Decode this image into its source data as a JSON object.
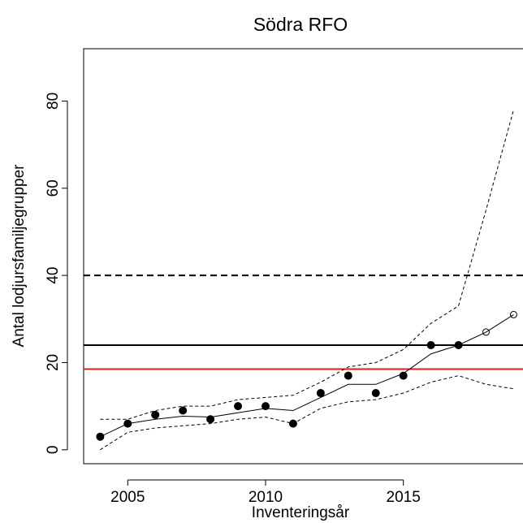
{
  "chart_data": {
    "type": "line",
    "title": "Södra RFO",
    "x_label": "Inventeringsår",
    "y_label": "Antal lodjursfamiljegrupper",
    "x": [
      2004,
      2005,
      2006,
      2007,
      2008,
      2009,
      2010,
      2011,
      2012,
      2013,
      2014,
      2015,
      2016,
      2017,
      2018,
      2019
    ],
    "series": [
      {
        "marker": "filled",
        "color": "#000000",
        "values": [
          3,
          6,
          8,
          9,
          7,
          10,
          10,
          6,
          13,
          17,
          13,
          17,
          24,
          24,
          null,
          null
        ]
      },
      {
        "marker": "open",
        "color": "#000000",
        "values": [
          null,
          null,
          null,
          null,
          null,
          null,
          null,
          null,
          null,
          null,
          null,
          null,
          null,
          null,
          27,
          31
        ]
      },
      {
        "line": "solid",
        "color": "#000000",
        "values": [
          3,
          6,
          7,
          7.7,
          7.5,
          8.5,
          9.5,
          9,
          12,
          15,
          15,
          17.5,
          22,
          24,
          27,
          31
        ]
      },
      {
        "line": "dashed",
        "color": "#000000",
        "values": [
          7,
          7,
          9,
          10,
          10,
          11.5,
          12,
          12.5,
          15.5,
          19,
          20,
          23,
          29,
          33,
          55,
          78
        ]
      },
      {
        "line": "dashed",
        "color": "#000000",
        "values": [
          0,
          4,
          5,
          5.5,
          6,
          7,
          7.5,
          6,
          9.5,
          11,
          11.5,
          13,
          15.5,
          17,
          15,
          14
        ]
      }
    ],
    "hlines": [
      {
        "value": 40,
        "line": "dashed",
        "color": "#000000"
      },
      {
        "value": 24,
        "line": "solid",
        "color": "#000000"
      },
      {
        "value": 18.5,
        "line": "solid",
        "color": "#e41a1c"
      }
    ],
    "xlim": [
      2003.4,
      2019.9
    ],
    "xticks": [
      2005,
      2010,
      2015
    ],
    "ylim": [
      -3.2,
      92
    ],
    "yticks": [
      0,
      20,
      40,
      60,
      80
    ]
  }
}
